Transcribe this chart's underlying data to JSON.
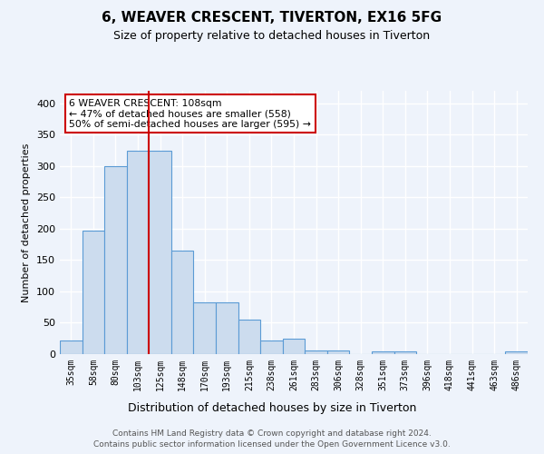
{
  "title1": "6, WEAVER CRESCENT, TIVERTON, EX16 5FG",
  "title2": "Size of property relative to detached houses in Tiverton",
  "xlabel": "Distribution of detached houses by size in Tiverton",
  "ylabel": "Number of detached properties",
  "bar_labels": [
    "35sqm",
    "58sqm",
    "80sqm",
    "103sqm",
    "125sqm",
    "148sqm",
    "170sqm",
    "193sqm",
    "215sqm",
    "238sqm",
    "261sqm",
    "283sqm",
    "306sqm",
    "328sqm",
    "351sqm",
    "373sqm",
    "396sqm",
    "418sqm",
    "441sqm",
    "463sqm",
    "486sqm"
  ],
  "bar_values": [
    22,
    197,
    300,
    325,
    325,
    165,
    82,
    82,
    55,
    22,
    25,
    6,
    6,
    0,
    5,
    5,
    0,
    0,
    0,
    0,
    4
  ],
  "bar_color": "#ccdcee",
  "bar_edge_color": "#5b9bd5",
  "red_line_x": 3.5,
  "annotation_text": "6 WEAVER CRESCENT: 108sqm\n← 47% of detached houses are smaller (558)\n50% of semi-detached houses are larger (595) →",
  "annotation_box_color": "#ffffff",
  "annotation_box_edge_color": "#cc0000",
  "footer1": "Contains HM Land Registry data © Crown copyright and database right 2024.",
  "footer2": "Contains public sector information licensed under the Open Government Licence v3.0.",
  "background_color": "#eef3fb",
  "grid_color": "#ffffff",
  "ylim": [
    0,
    420
  ],
  "yticks": [
    0,
    50,
    100,
    150,
    200,
    250,
    300,
    350,
    400
  ]
}
